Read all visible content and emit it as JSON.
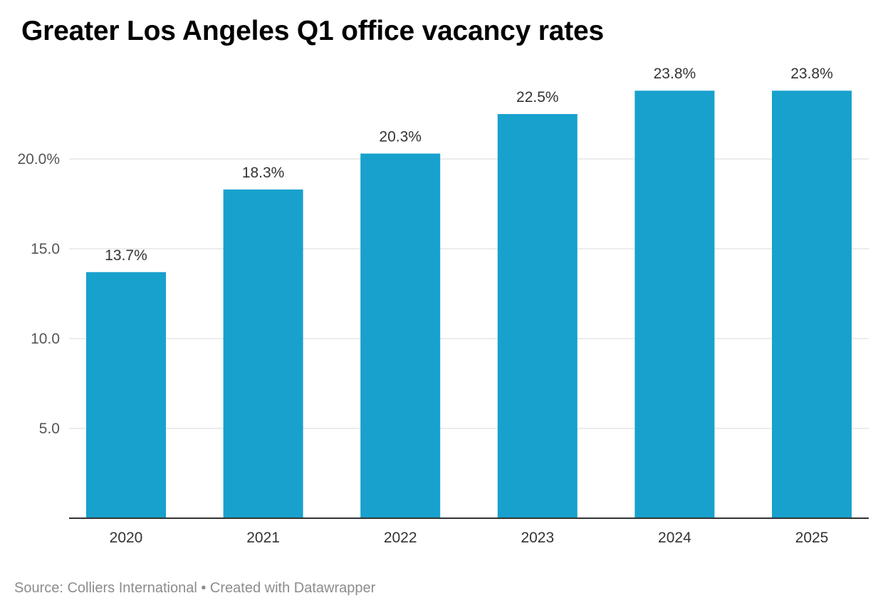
{
  "title": "Greater Los Angeles Q1 office vacancy rates",
  "footer": {
    "source": "Source: Colliers International",
    "separator": " • ",
    "credit": "Created with Datawrapper"
  },
  "colors": {
    "bar": "#18a1cd",
    "gridline": "#d9d9d9",
    "baseline": "#333333",
    "tick_label": "#555555",
    "value_label": "#333333",
    "footer": "#8c8c8c"
  },
  "chart_data": {
    "type": "bar",
    "title": "Greater Los Angeles Q1 office vacancy rates",
    "categories": [
      "2020",
      "2021",
      "2022",
      "2023",
      "2024",
      "2025"
    ],
    "values": [
      13.7,
      18.3,
      20.3,
      22.5,
      23.8,
      23.8
    ],
    "value_labels": [
      "13.7%",
      "18.3%",
      "20.3%",
      "22.5%",
      "23.8%",
      "23.8%"
    ],
    "yticks": [
      5,
      10,
      15,
      20
    ],
    "ytick_labels": [
      "5.0",
      "10.0",
      "15.0",
      "20.0%"
    ],
    "ylim": [
      0,
      25
    ],
    "xlabel": "",
    "ylabel": "",
    "grid": true,
    "legend": "none"
  }
}
